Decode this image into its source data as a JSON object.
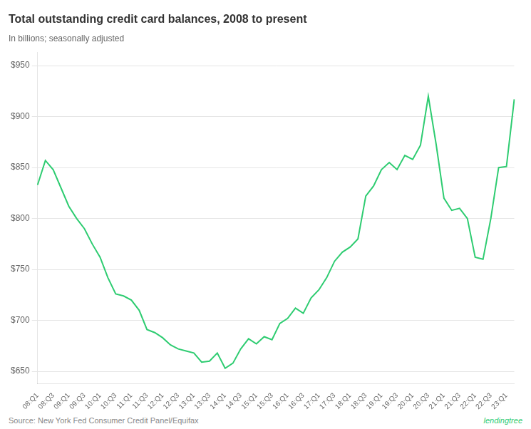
{
  "chart_data": {
    "type": "line",
    "title": "Total outstanding credit card balances, 2008 to present",
    "subtitle": "In billions; seasonally adjusted",
    "source": "Source: New York Fed Consumer Credit Panel/Equifax",
    "annotations": [
      "lendingtree"
    ],
    "color": "#2ecc71",
    "grid": "y",
    "categories": [
      "08:Q1",
      null,
      "08:Q3",
      null,
      "09:Q1",
      null,
      "09:Q3",
      null,
      "10:Q1",
      null,
      "10:Q3",
      null,
      "11:Q1",
      null,
      "11:Q3",
      null,
      "12:Q1",
      null,
      "12:Q3",
      null,
      "13:Q1",
      null,
      "13:Q3",
      null,
      "14:Q1",
      null,
      "14:Q3",
      null,
      "15:Q1",
      null,
      "15:Q3",
      null,
      "16:Q1",
      null,
      "16:Q3",
      null,
      "17:Q1",
      null,
      "17:Q3",
      null,
      "18:Q1",
      null,
      "18:Q3",
      null,
      "19:Q1",
      null,
      "19:Q3",
      null,
      "20:Q1",
      null,
      "20:Q3",
      null,
      "21:Q1",
      null,
      "21:Q3",
      null,
      "22:Q1",
      null,
      "22:Q3",
      null,
      "23:Q1",
      null
    ],
    "values": [
      833,
      857,
      848,
      830,
      812,
      800,
      790,
      775,
      762,
      742,
      726,
      724,
      720,
      710,
      691,
      688,
      683,
      676,
      672,
      670,
      668,
      659,
      660,
      668,
      653,
      658,
      672,
      682,
      677,
      684,
      681,
      697,
      702,
      712,
      707,
      722,
      730,
      742,
      758,
      767,
      772,
      780,
      822,
      832,
      848,
      855,
      848,
      862,
      858,
      872,
      920,
      873,
      820,
      808,
      810,
      800,
      762,
      760,
      800,
      850,
      851,
      917
    ],
    "ylim": [
      638,
      963
    ],
    "yticks": [
      {
        "value": 650,
        "label": "$650"
      },
      {
        "value": 700,
        "label": "$700"
      },
      {
        "value": 750,
        "label": "$750"
      },
      {
        "value": 800,
        "label": "$800"
      },
      {
        "value": 850,
        "label": "$850"
      },
      {
        "value": 900,
        "label": "$900"
      },
      {
        "value": 950,
        "label": "$950"
      }
    ]
  }
}
